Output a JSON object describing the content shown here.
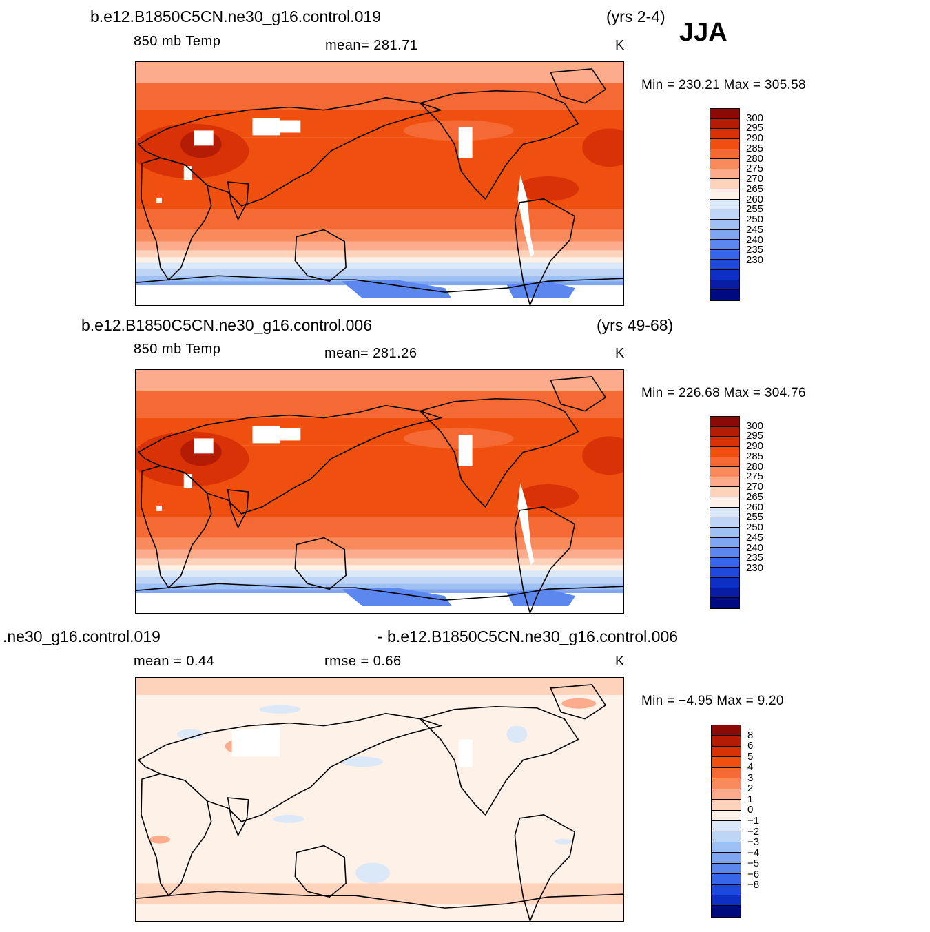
{
  "season": "JJA",
  "panels": [
    {
      "id": "p1",
      "case_left": "b.e12.B1850C5CN.ne30_g16.control.019",
      "case_right": "(yrs 2-4)",
      "variable": "850 mb Temp",
      "stat": "mean=  281.71",
      "units": "K",
      "minmax": "Min  =  230.21  Max  =  305.58",
      "kind": "temp"
    },
    {
      "id": "p2",
      "case_left": "b.e12.B1850C5CN.ne30_g16.control.006",
      "case_right": "(yrs 49-68)",
      "variable": "850 mb Temp",
      "stat": "mean=  281.26",
      "units": "K",
      "minmax": "Min  =  226.68  Max  =  304.76",
      "kind": "temp"
    },
    {
      "id": "p3",
      "case_left": ".ne30_g16.control.019",
      "case_right": "- b.e12.B1850C5CN.ne30_g16.control.006",
      "variable": "mean  =     0.44",
      "stat": "rmse  =     0.66",
      "units": "K",
      "minmax": "Min  =    −4.95  Max  =       9.20",
      "kind": "diff"
    }
  ],
  "colorbars": {
    "temp": {
      "colors": [
        "#8b0a06",
        "#b41c06",
        "#d93206",
        "#f0500f",
        "#f56a34",
        "#f98a5c",
        "#fcac8c",
        "#fdd3bc",
        "#fef1e8",
        "#dbe8f8",
        "#bed5f5",
        "#9fc0f3",
        "#7ea6f1",
        "#5b87ee",
        "#3766ea",
        "#1f49dd",
        "#0e2fc4",
        "#081ca4",
        "#000a80"
      ],
      "labels": [
        "300",
        "295",
        "290",
        "285",
        "280",
        "275",
        "270",
        "265",
        "260",
        "255",
        "250",
        "245",
        "240",
        "235",
        "230"
      ]
    },
    "diff": {
      "colors": [
        "#8b0a06",
        "#b41c06",
        "#d93206",
        "#f0500f",
        "#f56a34",
        "#f98a5c",
        "#fcac8c",
        "#fdd3bc",
        "#fef1e8",
        "#dbe8f8",
        "#bed5f5",
        "#9fc0f3",
        "#7ea6f1",
        "#5b87ee",
        "#3766ea",
        "#1f49dd",
        "#0e2fc4",
        "#000a80"
      ],
      "labels": [
        "8",
        "6",
        "5",
        "4",
        "3",
        "2",
        "1",
        "0",
        "−1",
        "−2",
        "−3",
        "−4",
        "−5",
        "−6",
        "−8"
      ]
    }
  }
}
